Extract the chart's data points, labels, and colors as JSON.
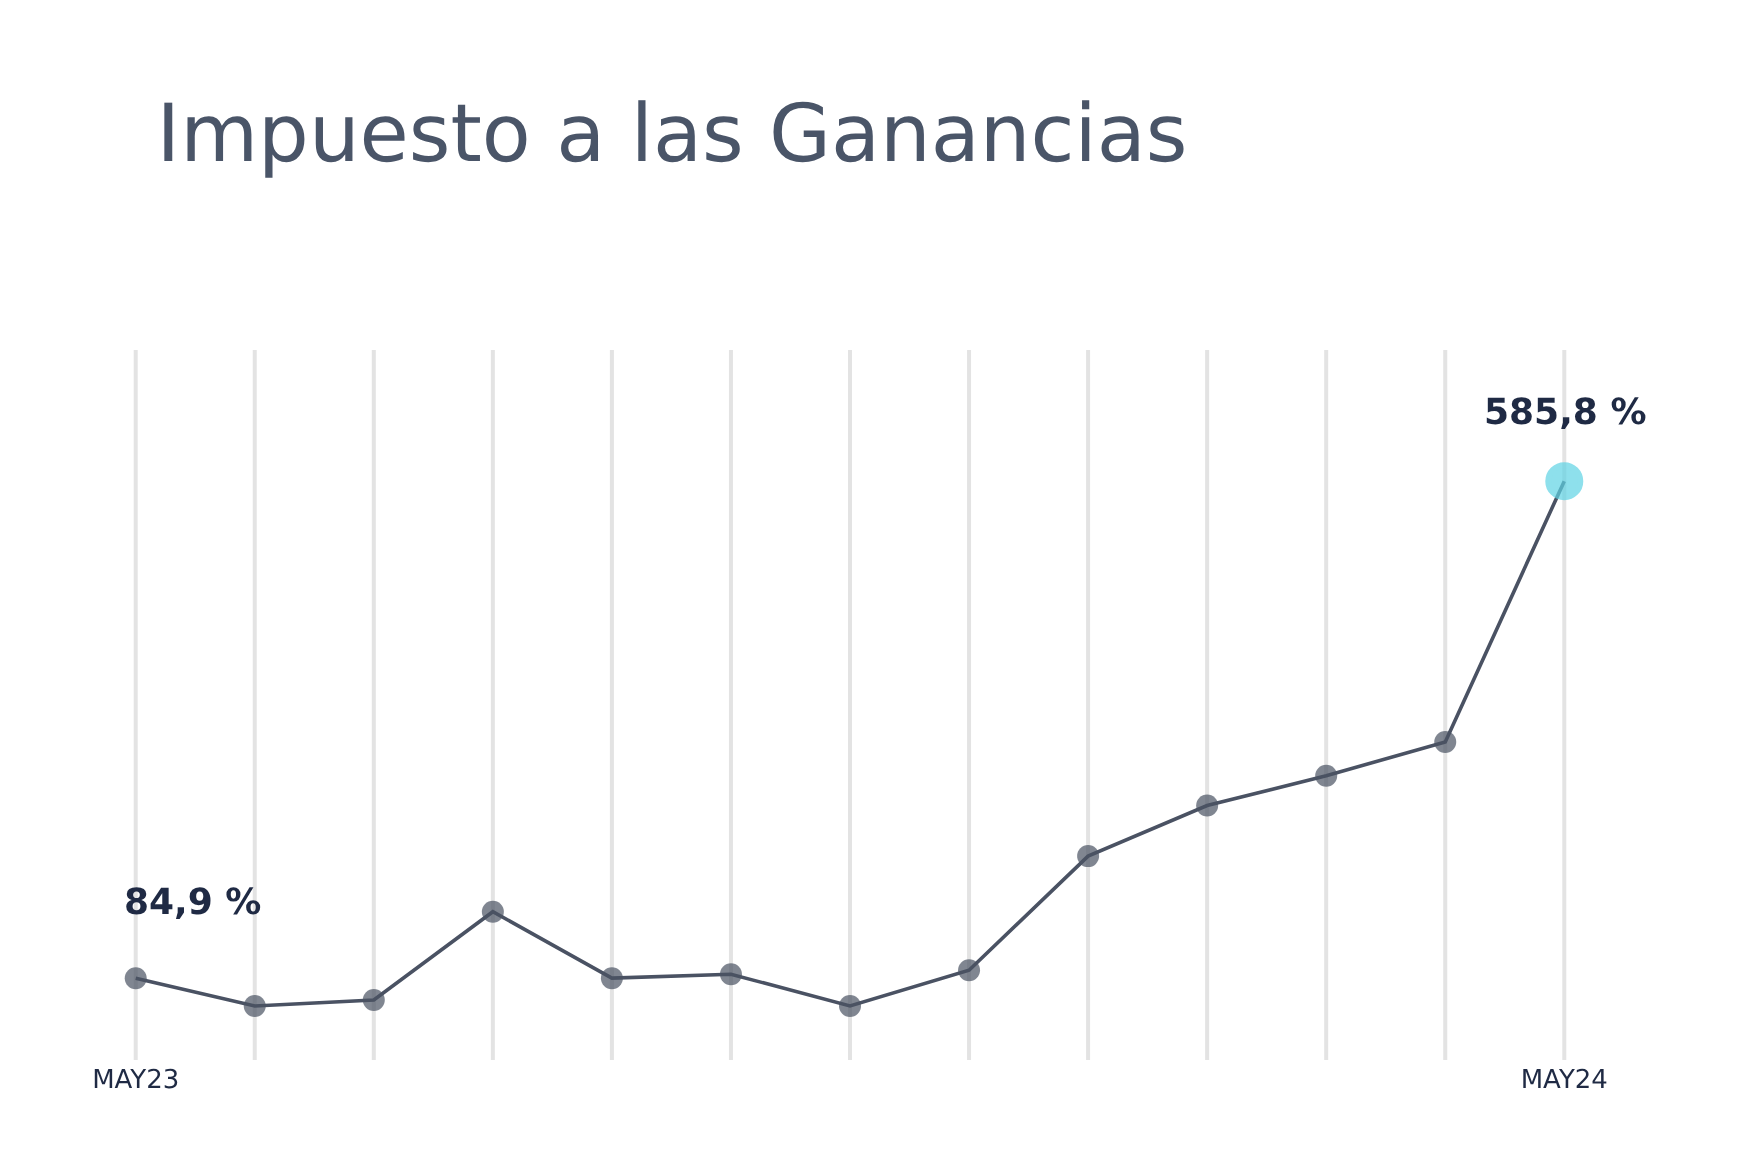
{
  "chart_data": {
    "type": "line",
    "title": "Impuesto a las Ganancias",
    "categories": [
      "MAY23",
      null,
      null,
      null,
      null,
      null,
      null,
      null,
      null,
      null,
      null,
      null,
      "MAY24"
    ],
    "series": [
      {
        "color": "#4a5263",
        "colors": [
          "#4a5263",
          "#4a5263",
          "#4a5263",
          "#4a5263",
          "#4a5263",
          "#4a5263",
          "#4a5263",
          "#4a5263",
          "#4a5263",
          "#4a5263",
          "#4a5263",
          "#4a5263",
          "#5fd3e4"
        ],
        "values": [
          84.9,
          57,
          63,
          152,
          85,
          89,
          57,
          93,
          208,
          259,
          289,
          323,
          585.8
        ],
        "value_labels": [
          "84,9 %",
          null,
          null,
          null,
          null,
          null,
          null,
          null,
          null,
          null,
          null,
          null,
          "585,8 %"
        ]
      }
    ],
    "grid": "x",
    "marker": "circle",
    "line_style": "solid"
  }
}
